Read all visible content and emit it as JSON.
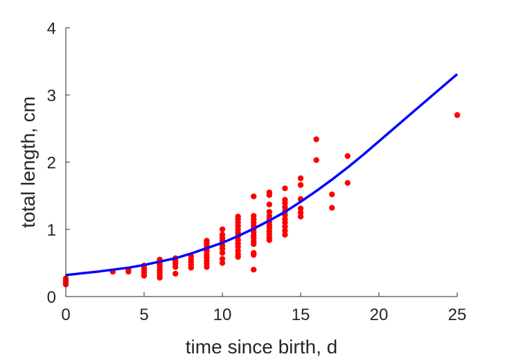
{
  "chart_data": {
    "type": "scatter",
    "xlabel": "time since birth, d",
    "ylabel": "total length, cm",
    "xlim": [
      0,
      25
    ],
    "ylim": [
      0,
      4
    ],
    "xticks": [
      0,
      5,
      10,
      15,
      20,
      25
    ],
    "yticks": [
      0,
      1,
      2,
      3,
      4
    ],
    "grid": false,
    "colors": {
      "points": "#ff0000",
      "curve": "#0000ff",
      "axis": "#262626"
    },
    "series": [
      {
        "kind": "points",
        "points": [
          [
            0,
            0.18
          ],
          [
            0,
            0.21
          ],
          [
            0,
            0.24
          ],
          [
            0,
            0.27
          ],
          [
            3,
            0.37
          ],
          [
            4,
            0.37
          ],
          [
            4,
            0.4
          ],
          [
            5,
            0.31
          ],
          [
            5,
            0.35
          ],
          [
            5,
            0.38
          ],
          [
            5,
            0.42
          ],
          [
            5,
            0.46
          ],
          [
            6,
            0.28
          ],
          [
            6,
            0.32
          ],
          [
            6,
            0.36
          ],
          [
            6,
            0.4
          ],
          [
            6,
            0.44
          ],
          [
            6,
            0.48
          ],
          [
            6,
            0.52
          ],
          [
            6,
            0.55
          ],
          [
            7,
            0.34
          ],
          [
            7,
            0.44
          ],
          [
            7,
            0.49
          ],
          [
            7,
            0.53
          ],
          [
            7,
            0.57
          ],
          [
            8,
            0.43
          ],
          [
            8,
            0.47
          ],
          [
            8,
            0.51
          ],
          [
            8,
            0.55
          ],
          [
            8,
            0.6
          ],
          [
            9,
            0.44
          ],
          [
            9,
            0.49
          ],
          [
            9,
            0.53
          ],
          [
            9,
            0.58
          ],
          [
            9,
            0.62
          ],
          [
            9,
            0.67
          ],
          [
            9,
            0.71
          ],
          [
            9,
            0.75
          ],
          [
            9,
            0.79
          ],
          [
            9,
            0.83
          ],
          [
            10,
            0.5
          ],
          [
            10,
            0.56
          ],
          [
            10,
            0.65
          ],
          [
            10,
            0.71
          ],
          [
            10,
            0.76
          ],
          [
            10,
            0.83
          ],
          [
            10,
            0.87
          ],
          [
            10,
            0.92
          ],
          [
            10,
            1.0
          ],
          [
            11,
            0.59
          ],
          [
            11,
            0.63
          ],
          [
            11,
            0.68
          ],
          [
            11,
            0.74
          ],
          [
            11,
            0.79
          ],
          [
            11,
            0.84
          ],
          [
            11,
            0.9
          ],
          [
            11,
            0.95
          ],
          [
            11,
            1.0
          ],
          [
            11,
            1.05
          ],
          [
            11,
            1.1
          ],
          [
            11,
            1.15
          ],
          [
            11,
            1.19
          ],
          [
            12,
            0.4
          ],
          [
            12,
            0.62
          ],
          [
            12,
            0.65
          ],
          [
            12,
            0.78
          ],
          [
            12,
            0.82
          ],
          [
            12,
            0.87
          ],
          [
            12,
            0.91
          ],
          [
            12,
            0.96
          ],
          [
            12,
            1.01
          ],
          [
            12,
            1.06
          ],
          [
            12,
            1.1
          ],
          [
            12,
            1.15
          ],
          [
            12,
            1.2
          ],
          [
            12,
            1.49
          ],
          [
            13,
            0.84
          ],
          [
            13,
            0.88
          ],
          [
            13,
            0.93
          ],
          [
            13,
            0.97
          ],
          [
            13,
            1.02
          ],
          [
            13,
            1.06
          ],
          [
            13,
            1.11
          ],
          [
            13,
            1.15
          ],
          [
            13,
            1.2
          ],
          [
            13,
            1.26
          ],
          [
            13,
            1.37
          ],
          [
            13,
            1.51
          ],
          [
            13,
            1.55
          ],
          [
            14,
            0.92
          ],
          [
            14,
            0.98
          ],
          [
            14,
            1.04
          ],
          [
            14,
            1.1
          ],
          [
            14,
            1.15
          ],
          [
            14,
            1.21
          ],
          [
            14,
            1.27
          ],
          [
            14,
            1.33
          ],
          [
            14,
            1.39
          ],
          [
            14,
            1.44
          ],
          [
            14,
            1.61
          ],
          [
            15,
            1.19
          ],
          [
            15,
            1.25
          ],
          [
            15,
            1.31
          ],
          [
            15,
            1.45
          ],
          [
            15,
            1.66
          ],
          [
            15,
            1.76
          ],
          [
            16,
            2.03
          ],
          [
            16,
            2.34
          ],
          [
            17,
            1.32
          ],
          [
            17,
            1.52
          ],
          [
            18,
            1.69
          ],
          [
            18,
            2.09
          ],
          [
            25,
            2.7
          ]
        ]
      },
      {
        "kind": "curve",
        "points": [
          [
            0,
            0.32
          ],
          [
            1,
            0.345
          ],
          [
            2,
            0.37
          ],
          [
            3,
            0.4
          ],
          [
            4,
            0.43
          ],
          [
            5,
            0.47
          ],
          [
            6,
            0.52
          ],
          [
            7,
            0.57
          ],
          [
            8,
            0.64
          ],
          [
            9,
            0.72
          ],
          [
            10,
            0.8
          ],
          [
            11,
            0.9
          ],
          [
            12,
            1.01
          ],
          [
            13,
            1.13
          ],
          [
            14,
            1.26
          ],
          [
            15,
            1.41
          ],
          [
            16,
            1.57
          ],
          [
            17,
            1.74
          ],
          [
            18,
            1.92
          ],
          [
            19,
            2.11
          ],
          [
            20,
            2.31
          ],
          [
            21,
            2.51
          ],
          [
            22,
            2.71
          ],
          [
            23,
            2.91
          ],
          [
            24,
            3.11
          ],
          [
            25,
            3.31
          ]
        ]
      }
    ]
  }
}
